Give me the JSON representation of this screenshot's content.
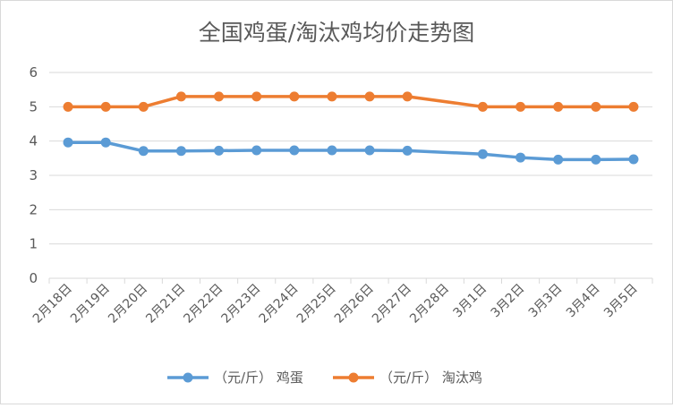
{
  "chart_data": {
    "type": "line",
    "title": "全国鸡蛋/淘汰鸡均价走势图",
    "xlabel": "",
    "ylabel": "",
    "categories": [
      "2月18日",
      "2月19日",
      "2月20日",
      "2月21日",
      "2月22日",
      "2月23日",
      "2月24日",
      "2月25日",
      "2月26日",
      "2月27日",
      "2月28日",
      "3月1日",
      "3月2日",
      "3月3日",
      "3月4日",
      "3月5日"
    ],
    "ylim": [
      0,
      6
    ],
    "yticks": [
      "0",
      "1",
      "2",
      "3",
      "4",
      "5",
      "6"
    ],
    "grid": true,
    "legend_position": "bottom",
    "series": [
      {
        "name": "（元/斤） 鸡蛋",
        "color": "#5b9bd5",
        "values": [
          3.96,
          3.96,
          3.71,
          3.71,
          3.72,
          3.73,
          3.73,
          3.73,
          3.73,
          3.72,
          null,
          3.62,
          3.52,
          3.46,
          3.46,
          3.47
        ]
      },
      {
        "name": "（元/斤） 淘汰鸡",
        "color": "#ed7d31",
        "values": [
          5.0,
          5.0,
          5.0,
          5.3,
          5.3,
          5.3,
          5.3,
          5.3,
          5.3,
          5.3,
          null,
          5.0,
          5.0,
          5.0,
          5.0,
          5.0
        ]
      }
    ]
  }
}
